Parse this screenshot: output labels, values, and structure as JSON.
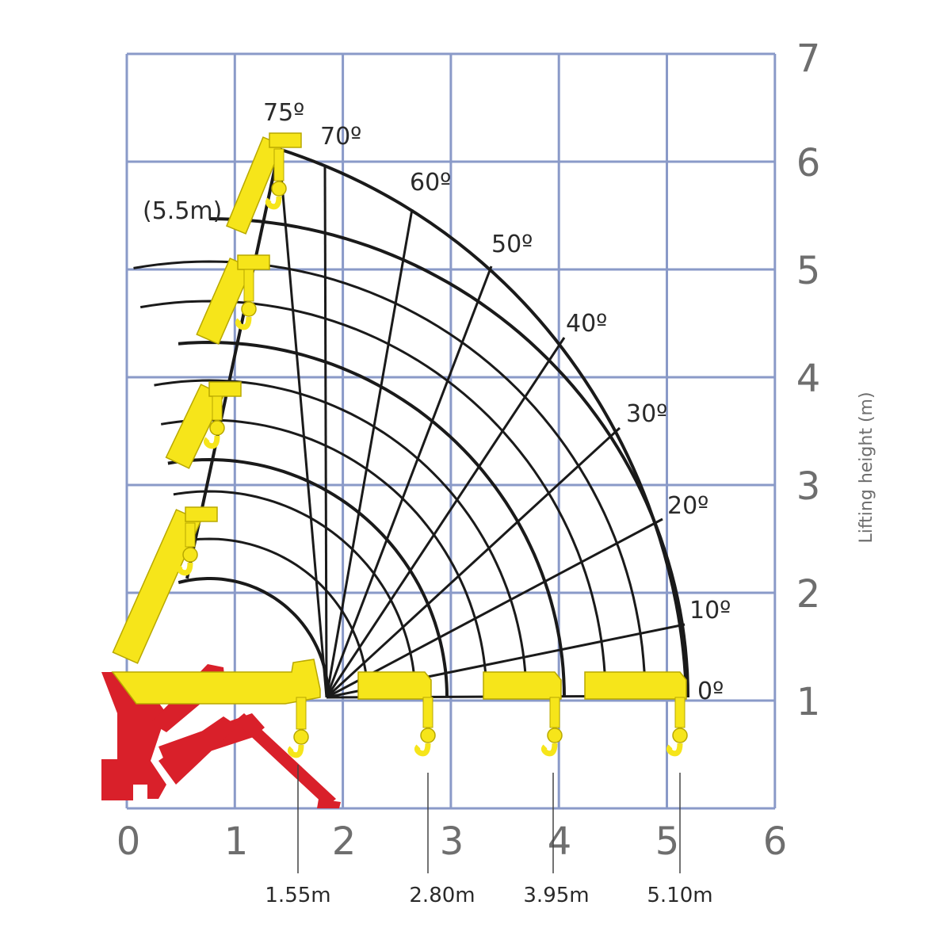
{
  "diagram": {
    "x_ticks": [
      "0",
      "1",
      "2",
      "3",
      "4",
      "5",
      "6"
    ],
    "y_ticks": [
      "1",
      "2",
      "3",
      "4",
      "5",
      "6",
      "7"
    ],
    "y_axis_label": "Lifting height (m)",
    "angles": [
      {
        "label": "0º",
        "deg": 0
      },
      {
        "label": "10º",
        "deg": 10
      },
      {
        "label": "20º",
        "deg": 20
      },
      {
        "label": "30º",
        "deg": 30
      },
      {
        "label": "40º",
        "deg": 40
      },
      {
        "label": "50º",
        "deg": 50
      },
      {
        "label": "60º",
        "deg": 60
      },
      {
        "label": "70º",
        "deg": 70
      },
      {
        "label": "75º",
        "deg": 75
      }
    ],
    "boom_reaches_m": [
      1.55,
      2.8,
      3.95,
      5.1
    ],
    "reach_labels": [
      "1.55m",
      "2.80m",
      "3.95m",
      "5.10m"
    ],
    "max_height_label": "(5.5m)",
    "colors": {
      "grid": "#8a9ac8",
      "arc": "#1a1a1a",
      "boom": "#f6e51a",
      "boom_outline": "#b8a800",
      "base": "#d9202a"
    }
  }
}
